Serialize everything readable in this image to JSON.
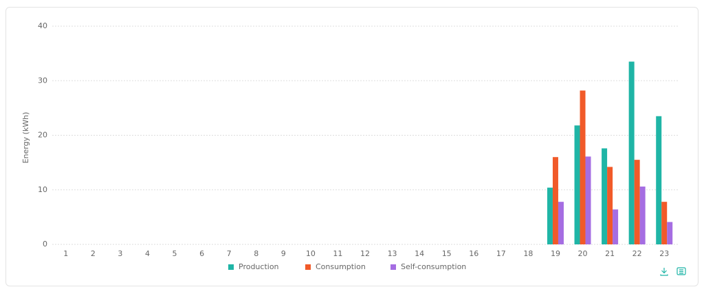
{
  "chart_data": {
    "type": "bar",
    "ylabel": "Energy  (kWh)",
    "categories": [
      "1",
      "2",
      "3",
      "4",
      "5",
      "6",
      "7",
      "8",
      "9",
      "10",
      "11",
      "12",
      "13",
      "14",
      "15",
      "16",
      "17",
      "18",
      "19",
      "20",
      "21",
      "22",
      "23"
    ],
    "series": [
      {
        "name": "Production",
        "color": "#1fb5a6",
        "values": [
          0,
          0,
          0,
          0,
          0,
          0,
          0,
          0,
          0,
          0,
          0,
          0,
          0,
          0,
          0,
          0,
          0,
          0,
          10.4,
          21.8,
          17.6,
          33.5,
          23.5
        ]
      },
      {
        "name": "Consumption",
        "color": "#f15a29",
        "values": [
          0,
          0,
          0,
          0,
          0,
          0,
          0,
          0,
          0,
          0,
          0,
          0,
          0,
          0,
          0,
          0,
          0,
          0,
          16,
          28.2,
          14.2,
          15.5,
          7.8
        ]
      },
      {
        "name": "Self-consumption",
        "color": "#a56de2",
        "values": [
          0,
          0,
          0,
          0,
          0,
          0,
          0,
          0,
          0,
          0,
          0,
          0,
          0,
          0,
          0,
          0,
          0,
          0,
          7.8,
          16.1,
          6.4,
          10.6,
          4.1
        ]
      }
    ],
    "ylim": [
      0,
      40
    ],
    "yticks": [
      0,
      10,
      20,
      30,
      40
    ],
    "grid": true
  }
}
